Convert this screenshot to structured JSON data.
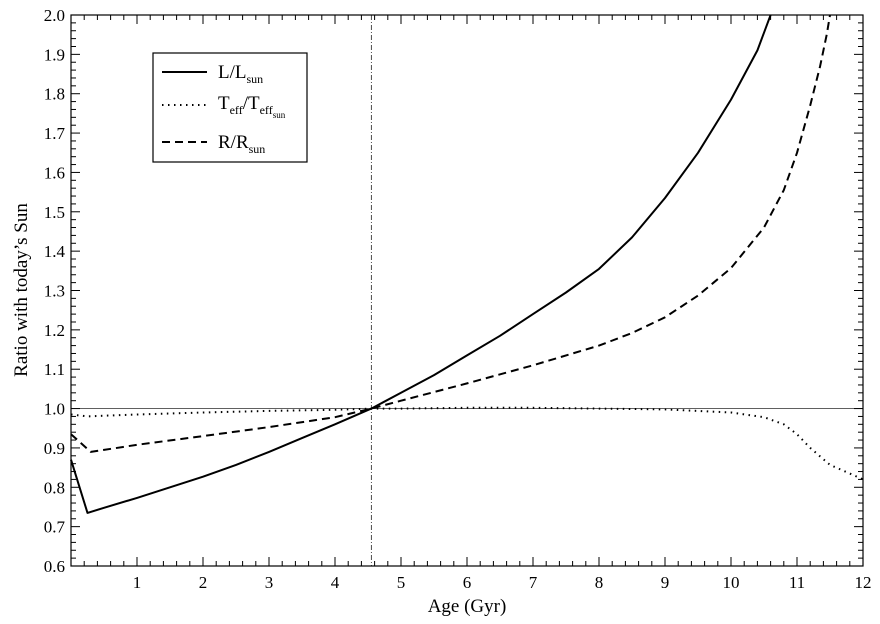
{
  "chart_data": {
    "type": "line",
    "xlabel": "Age (Gyr)",
    "ylabel": "Ratio with today’s Sun",
    "xlim": [
      0,
      12
    ],
    "ylim": [
      0.6,
      2.0
    ],
    "x_ticks": [
      "1",
      "2",
      "3",
      "4",
      "5",
      "6",
      "7",
      "8",
      "9",
      "10",
      "11",
      "12"
    ],
    "y_ticks": [
      "0.6",
      "0.7",
      "0.8",
      "0.9",
      "1.0",
      "1.1",
      "1.2",
      "1.3",
      "1.4",
      "1.5",
      "1.6",
      "1.7",
      "1.8",
      "1.9",
      "2.0"
    ],
    "reference_hline": 1.0,
    "reference_vline": 4.55,
    "legend_placement": "top-left",
    "series": [
      {
        "name_main": "L/L",
        "name_sub": "sun",
        "style": "solid",
        "x": [
          0.0,
          0.25,
          0.5,
          1.0,
          1.5,
          2.0,
          2.5,
          3.0,
          3.5,
          4.0,
          4.55,
          5.0,
          5.5,
          6.0,
          6.5,
          7.0,
          7.5,
          8.0,
          8.5,
          9.0,
          9.5,
          10.0,
          10.4,
          10.6
        ],
        "y": [
          0.87,
          0.735,
          0.748,
          0.773,
          0.8,
          0.827,
          0.857,
          0.89,
          0.925,
          0.96,
          1.0,
          1.04,
          1.085,
          1.135,
          1.185,
          1.24,
          1.295,
          1.355,
          1.435,
          1.535,
          1.65,
          1.785,
          1.91,
          2.0
        ]
      },
      {
        "name_main": "T",
        "name_sub": "eff",
        "name_main2": "/T",
        "name_sub2": "eff",
        "name_subsub2": "sun",
        "style": "dotted",
        "x": [
          0.0,
          0.25,
          0.5,
          1.0,
          2.0,
          3.0,
          4.0,
          4.55,
          5.0,
          6.0,
          7.0,
          8.0,
          9.0,
          10.0,
          10.5,
          10.8,
          11.0,
          11.2,
          11.5,
          11.8,
          12.0
        ],
        "y": [
          0.985,
          0.98,
          0.982,
          0.985,
          0.99,
          0.994,
          0.997,
          1.0,
          1.0,
          1.002,
          1.002,
          1.0,
          0.998,
          0.99,
          0.978,
          0.96,
          0.935,
          0.9,
          0.857,
          0.835,
          0.82
        ]
      },
      {
        "name_main": "R/R",
        "name_sub": "sun",
        "style": "dashed",
        "x": [
          0.0,
          0.3,
          0.5,
          1.0,
          2.0,
          3.0,
          4.0,
          4.55,
          5.0,
          6.0,
          7.0,
          8.0,
          8.5,
          9.0,
          9.5,
          10.0,
          10.5,
          10.8,
          11.0,
          11.2,
          11.35,
          11.45,
          11.5
        ],
        "y": [
          0.935,
          0.89,
          0.895,
          0.908,
          0.93,
          0.953,
          0.978,
          1.0,
          1.02,
          1.064,
          1.11,
          1.16,
          1.192,
          1.232,
          1.287,
          1.357,
          1.46,
          1.555,
          1.65,
          1.77,
          1.87,
          1.95,
          2.0
        ]
      }
    ]
  }
}
